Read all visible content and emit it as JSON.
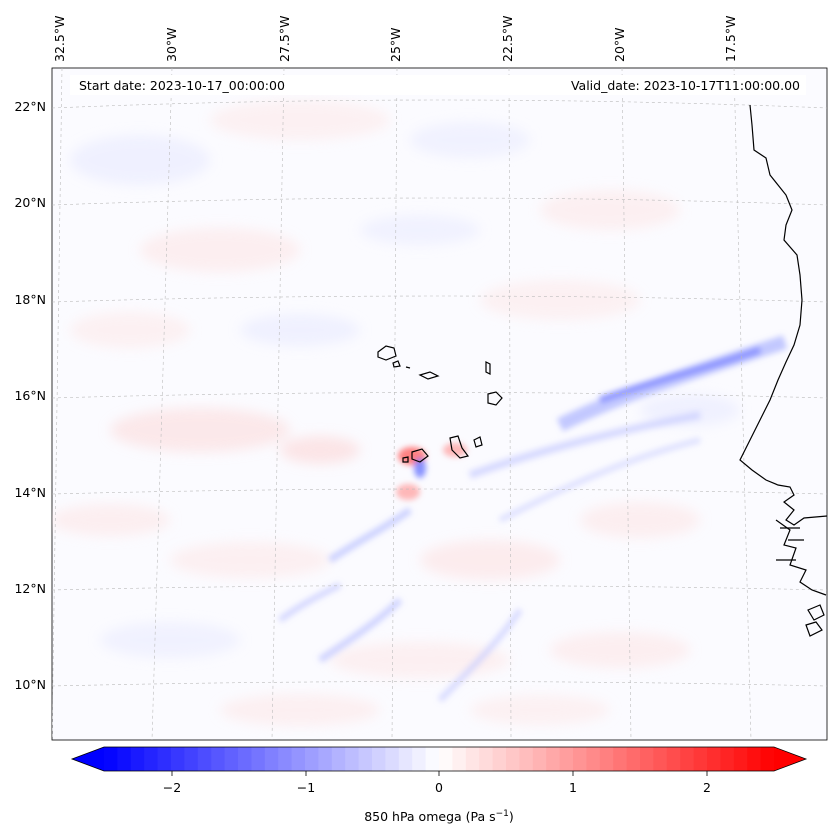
{
  "header": {
    "start_date": "Start date: 2023-10-17_00:00:00",
    "valid_date": "Valid_date: 2023-10-17T11:00:00.00"
  },
  "axes": {
    "lon_ticks": [
      "32.5°W",
      "30°W",
      "27.5°W",
      "25°W",
      "22.5°W",
      "20°W",
      "17.5°W"
    ],
    "lat_ticks": [
      "22°N",
      "20°N",
      "18°N",
      "16°N",
      "14°N",
      "12°N",
      "10°N"
    ]
  },
  "colorbar": {
    "label_text": "850 hPa omega (Pa s",
    "label_exp": "−1",
    "label_close": ")",
    "ticks": [
      "−2",
      "−1",
      "0",
      "1",
      "2"
    ],
    "range": [
      -2.5,
      2.5
    ],
    "colormap": "bwr",
    "extend": "both"
  },
  "colors": {
    "negative": "#0000ff",
    "neutral": "#ffffff",
    "positive": "#ff0000",
    "coast": "#000000",
    "grid": "#bbbbbb"
  }
}
